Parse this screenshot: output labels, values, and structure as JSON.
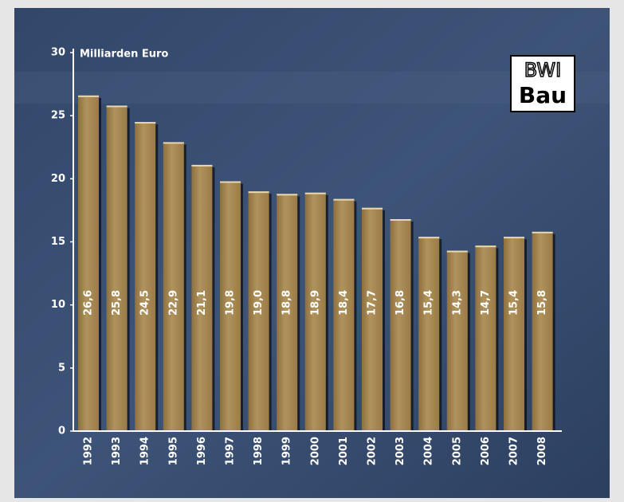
{
  "chart_data": {
    "type": "bar",
    "y_axis_label": "Milliarden Euro",
    "logo": [
      "BWI",
      "Bau"
    ],
    "categories": [
      "1992",
      "1993",
      "1994",
      "1995",
      "1996",
      "1997",
      "1998",
      "1999",
      "2000",
      "2001",
      "2002",
      "2003",
      "2004",
      "2005",
      "2006",
      "2007",
      "2008"
    ],
    "values": [
      26.6,
      25.8,
      24.5,
      22.9,
      21.1,
      19.8,
      19.0,
      18.8,
      18.9,
      18.4,
      17.7,
      16.8,
      15.4,
      14.3,
      14.7,
      15.4,
      15.8
    ],
    "value_labels": [
      "26,6",
      "25,8",
      "24,5",
      "22,9",
      "21,1",
      "19,8",
      "19,0",
      "18,8",
      "18,9",
      "18,4",
      "17,7",
      "16,8",
      "15,4",
      "14,3",
      "14,7",
      "15,4",
      "15,8"
    ],
    "color": "#a98b55",
    "ylim": [
      0,
      30
    ],
    "yticks": [
      0,
      5,
      10,
      15,
      20,
      25,
      30
    ]
  }
}
